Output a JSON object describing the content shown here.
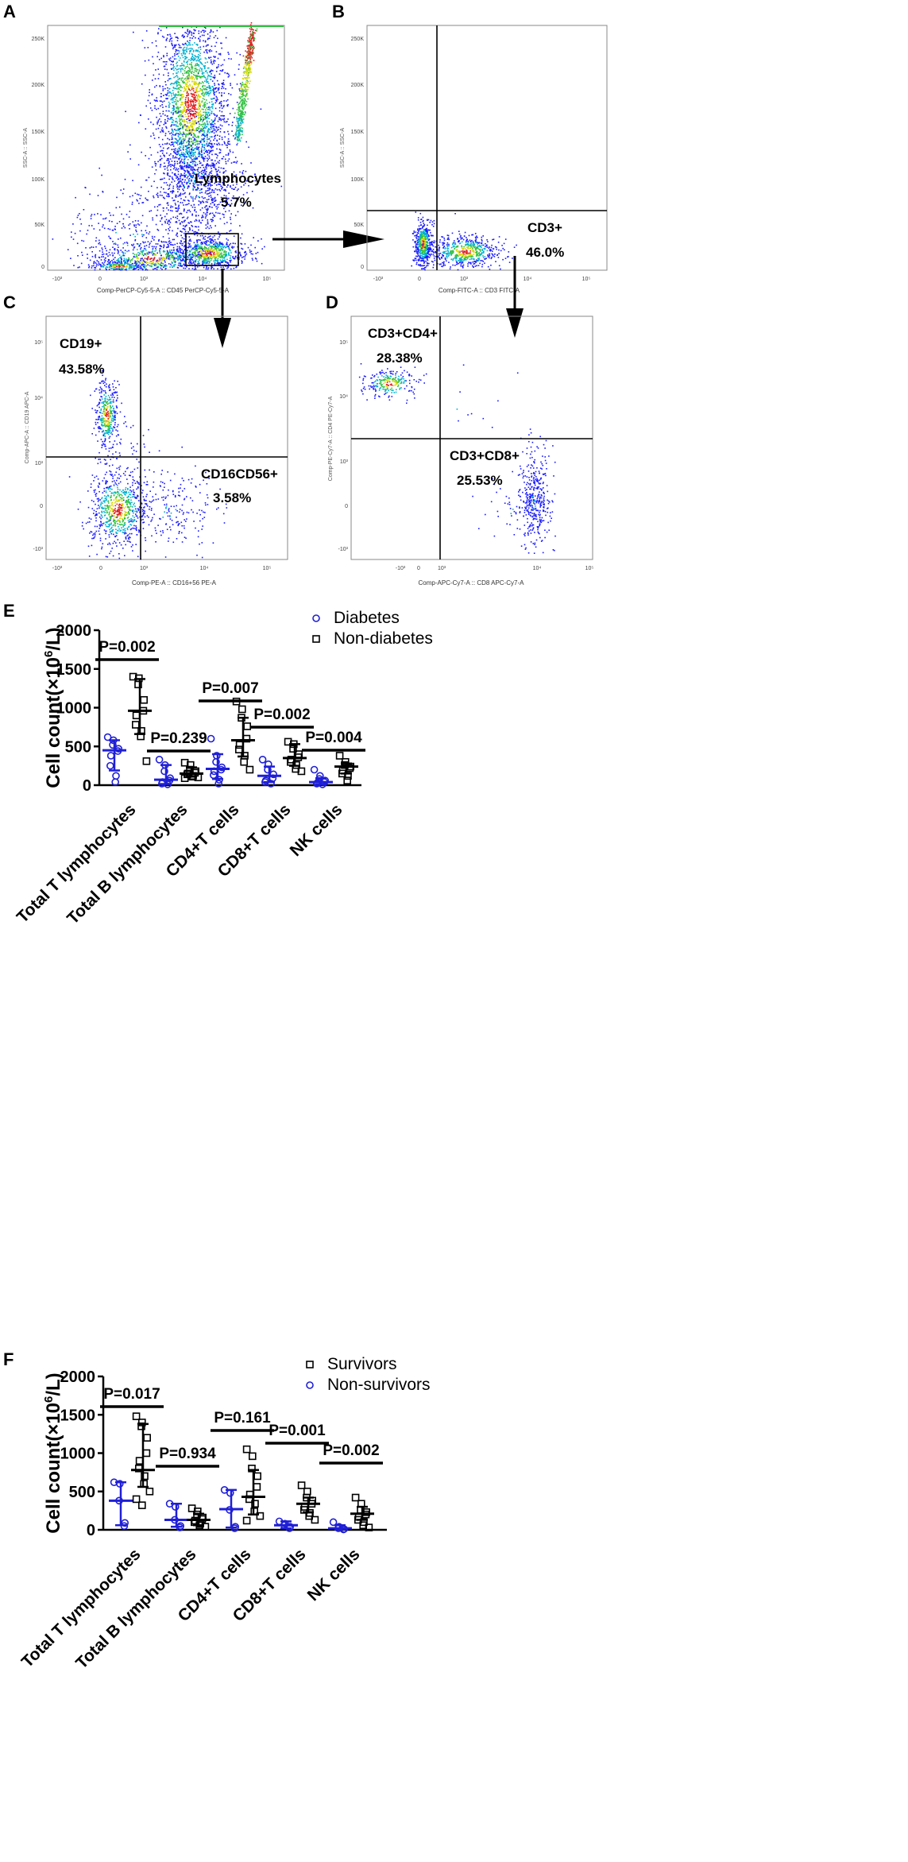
{
  "figure": {
    "panel_labels": [
      "A",
      "B",
      "C",
      "D",
      "E",
      "F"
    ]
  },
  "colors": {
    "diabetes": "#1f1fd6",
    "nondiabetes": "#000000",
    "survivors": "#000000",
    "nonsurvivors": "#1f1fd6",
    "gate": "#000000",
    "dot_blue": "#1a1aff",
    "dot_cyan": "#00b0d0",
    "dot_green": "#30c040",
    "dot_yellow": "#d8d800",
    "dot_red": "#e02020"
  },
  "flow": {
    "common_ticks_x": [
      "-10³",
      "0",
      "10³",
      "10⁴",
      "10⁵"
    ],
    "panel_A": {
      "y_ticks": [
        "0",
        "50K",
        "100K",
        "150K",
        "200K",
        "250K"
      ],
      "x_ticks": [
        "-10³",
        "0",
        "10³",
        "10⁴",
        "10⁵"
      ],
      "y_axis_label": "SSC-A :: SSC-A",
      "x_axis_label": "Comp-PerCP-Cy5-5-A :: CD45 PerCP-Cy5-5-A",
      "gate_name": "Lymphocytes",
      "gate_pct": "5.7%"
    },
    "panel_B": {
      "y_ticks": [
        "0",
        "50K",
        "100K",
        "150K",
        "200K",
        "250K"
      ],
      "x_ticks": [
        "-10³",
        "0",
        "10³",
        "10⁴",
        "10⁵"
      ],
      "y_axis_label": "SSC-A :: SSC-A",
      "x_axis_label": "Comp-FITC-A :: CD3 FITC-A",
      "gate_name": "CD3+",
      "gate_pct": "46.0%"
    },
    "panel_C": {
      "y_ticks": [
        "-10³",
        "0",
        "10³",
        "10⁴",
        "10⁵"
      ],
      "x_ticks": [
        "-10³",
        "0",
        "10³",
        "10⁴",
        "10⁵"
      ],
      "y_axis_label": "Comp-APC-A :: CD19 APC-A",
      "x_axis_label": "Comp-PE-A :: CD16+56 PE-A",
      "q1_name": "CD19+",
      "q1_pct": "43.58%",
      "q2_name": "CD16CD56+",
      "q2_pct": "3.58%"
    },
    "panel_D": {
      "y_ticks": [
        "-10³",
        "0",
        "10³",
        "10⁴",
        "10⁵"
      ],
      "x_ticks": [
        "-10³",
        "0",
        "10³",
        "10⁴",
        "10⁵"
      ],
      "y_axis_label": "Comp-PE-Cy7-A :: CD4 PE-Cy7-A",
      "x_axis_label": "Comp-APC-Cy7-A :: CD8 APC-Cy7-A",
      "q1_name": "CD3+CD4+",
      "q1_pct": "28.38%",
      "q2_name": "CD3+CD8+",
      "q2_pct": "25.53%"
    }
  },
  "chart_data": [
    {
      "type": "scatter",
      "panel": "E",
      "ylabel_main": "Cell count(×10",
      "ylabel_sup": "6",
      "ylabel_end": "/L)",
      "ylim": [
        0,
        2000
      ],
      "yticks": [
        "0",
        "500",
        "1000",
        "1500",
        "2000"
      ],
      "ytick_values": [
        0,
        500,
        1000,
        1500,
        2000
      ],
      "categories": [
        "Total T lymphocytes",
        "Total B lymphocytes",
        "CD4+T cells",
        "CD8+T cells",
        "NK cells"
      ],
      "legend": [
        "Diabetes",
        "Non-diabetes"
      ],
      "p_values": [
        "P=0.002",
        "P=0.239",
        "P=0.007",
        "P=0.002",
        "P=0.004"
      ],
      "series": [
        {
          "name": "Diabetes",
          "marker": "circle",
          "median": [
            450,
            70,
            210,
            120,
            40
          ],
          "iqr_low": [
            190,
            15,
            80,
            40,
            10
          ],
          "iqr_high": [
            580,
            260,
            400,
            240,
            90
          ],
          "points": [
            [
              620,
              580,
              520,
              470,
              440,
              380,
              250,
              120,
              40
            ],
            [
              330,
              260,
              180,
              90,
              60,
              40,
              20,
              10
            ],
            [
              600,
              380,
              300,
              230,
              200,
              180,
              130,
              70,
              20
            ],
            [
              330,
              270,
              200,
              140,
              90,
              60,
              40,
              20
            ],
            [
              200,
              120,
              80,
              60,
              40,
              30,
              20,
              10
            ]
          ]
        },
        {
          "name": "Non-diabetes",
          "marker": "square",
          "median": [
            960,
            150,
            580,
            350,
            240
          ],
          "iqr_low": [
            660,
            110,
            370,
            250,
            150
          ],
          "iqr_high": [
            1370,
            230,
            870,
            530,
            280
          ],
          "points": [
            [
              1400,
              1380,
              1300,
              1100,
              960,
              900,
              780,
              700,
              630,
              310
            ],
            [
              290,
              260,
              200,
              180,
              160,
              150,
              140,
              120,
              110,
              100,
              90
            ],
            [
              1080,
              980,
              870,
              760,
              600,
              520,
              460,
              380,
              300,
              200
            ],
            [
              560,
              530,
              470,
              400,
              360,
              330,
              300,
              260,
              210,
              180
            ],
            [
              380,
              300,
              260,
              240,
              220,
              190,
              150,
              120,
              60
            ]
          ]
        }
      ]
    },
    {
      "type": "scatter",
      "panel": "F",
      "ylabel_main": "Cell count(×10",
      "ylabel_sup": "6",
      "ylabel_end": "/L)",
      "ylim": [
        0,
        2000
      ],
      "yticks": [
        "0",
        "500",
        "1000",
        "1500",
        "2000"
      ],
      "ytick_values": [
        0,
        500,
        1000,
        1500,
        2000
      ],
      "categories": [
        "Total T lymphocytes",
        "Total B lymphocytes",
        "CD4+T cells",
        "CD8+T cells",
        "NK cells"
      ],
      "legend": [
        "Survivors",
        "Non-survivors"
      ],
      "p_values": [
        "P=0.017",
        "P=0.934",
        "P=0.161",
        "P=0.001",
        "P=0.002"
      ],
      "series": [
        {
          "name": "Non-survivors",
          "marker": "circle",
          "median": [
            380,
            130,
            270,
            60,
            20
          ],
          "iqr_low": [
            60,
            40,
            30,
            20,
            5
          ],
          "iqr_high": [
            620,
            340,
            520,
            110,
            60
          ],
          "points": [
            [
              620,
              600,
              380,
              90,
              50
            ],
            [
              340,
              300,
              130,
              50,
              30
            ],
            [
              520,
              480,
              260,
              40,
              20
            ],
            [
              110,
              80,
              60,
              40,
              20
            ],
            [
              100,
              40,
              20,
              10,
              5
            ]
          ]
        },
        {
          "name": "Survivors",
          "marker": "square",
          "median": [
            780,
            130,
            430,
            340,
            210
          ],
          "iqr_low": [
            560,
            60,
            200,
            230,
            130
          ],
          "iqr_high": [
            1380,
            210,
            780,
            420,
            300
          ],
          "points": [
            [
              1480,
              1400,
              1350,
              1200,
              1000,
              900,
              800,
              700,
              600,
              500,
              400,
              320
            ],
            [
              280,
              240,
              200,
              160,
              140,
              120,
              100,
              80,
              60,
              40
            ],
            [
              1050,
              960,
              800,
              700,
              560,
              460,
              400,
              340,
              240,
              180,
              120
            ],
            [
              580,
              500,
              420,
              380,
              340,
              300,
              260,
              220,
              180,
              130
            ],
            [
              420,
              340,
              260,
              230,
              200,
              170,
              130,
              100,
              60,
              30
            ]
          ]
        }
      ]
    }
  ]
}
